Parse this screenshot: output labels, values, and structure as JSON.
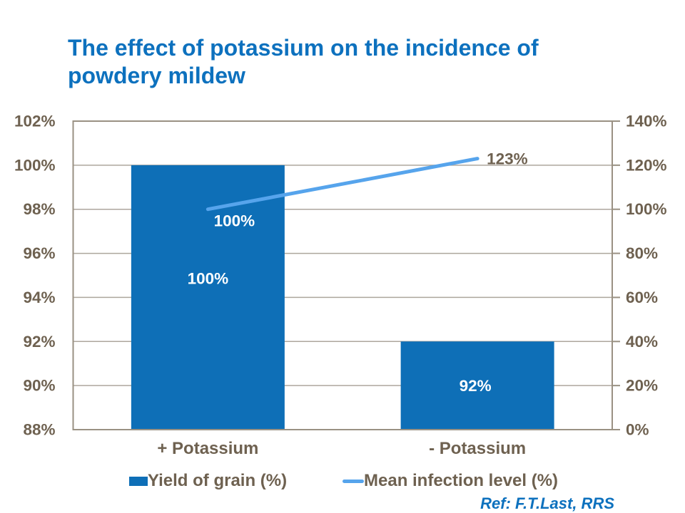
{
  "title": "The effect of potassium on the incidence of powdery mildew",
  "reference": "Ref: F.T.Last, RRS",
  "colors": {
    "title_blue": "#0d71be",
    "bar_blue": "#0e6fb7",
    "line_blue": "#56a4ec",
    "axis_text": "#6e6150",
    "axis_line": "#9a9183",
    "gridline": "#ada69d",
    "bar_label_white": "#ffffff"
  },
  "chart_data": {
    "type": "combo",
    "categories": [
      "+ Potassium",
      "- Potassium"
    ],
    "series": [
      {
        "name": "Yield of grain (%)",
        "type": "bar",
        "axis": "left",
        "values": [
          100,
          92
        ],
        "data_labels": [
          "100%",
          "92%"
        ]
      },
      {
        "name": "Mean infection level (%)",
        "type": "line",
        "axis": "right",
        "values": [
          100,
          123
        ],
        "data_labels": [
          "100%",
          "123%"
        ]
      }
    ],
    "left_axis": {
      "min": 88,
      "max": 102,
      "step": 2,
      "tick_labels": [
        "88%",
        "90%",
        "92%",
        "94%",
        "96%",
        "98%",
        "100%",
        "102%"
      ]
    },
    "right_axis": {
      "min": 0,
      "max": 140,
      "step": 20,
      "tick_labels": [
        "0%",
        "20%",
        "40%",
        "60%",
        "80%",
        "100%",
        "120%",
        "140%"
      ]
    },
    "grid": true,
    "legend_position": "bottom"
  }
}
